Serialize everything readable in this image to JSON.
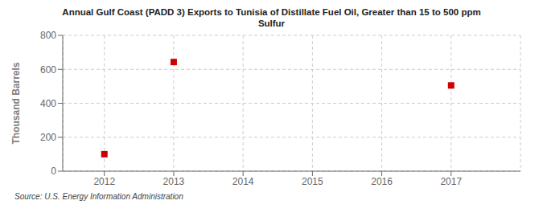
{
  "chart_data": {
    "type": "scatter",
    "title": "Annual Gulf Coast (PADD 3) Exports to Tunisia of Distillate Fuel Oil, Greater than 15 to 500 ppm\nSulfur",
    "ylabel": "Thousand Barrels",
    "annotations": [
      "Source: U.S. Energy Information Administration"
    ],
    "x": [
      2012,
      2013,
      2017
    ],
    "values": [
      100,
      643,
      505
    ],
    "color": "#cc0000",
    "marker": "square",
    "xlim": [
      2011.4,
      2018.0
    ],
    "xticks": [
      2012,
      2013,
      2014,
      2015,
      2016,
      2017
    ],
    "ylim": [
      0,
      800
    ],
    "yticks": [
      0,
      200,
      400,
      600,
      800
    ],
    "grid": true
  }
}
